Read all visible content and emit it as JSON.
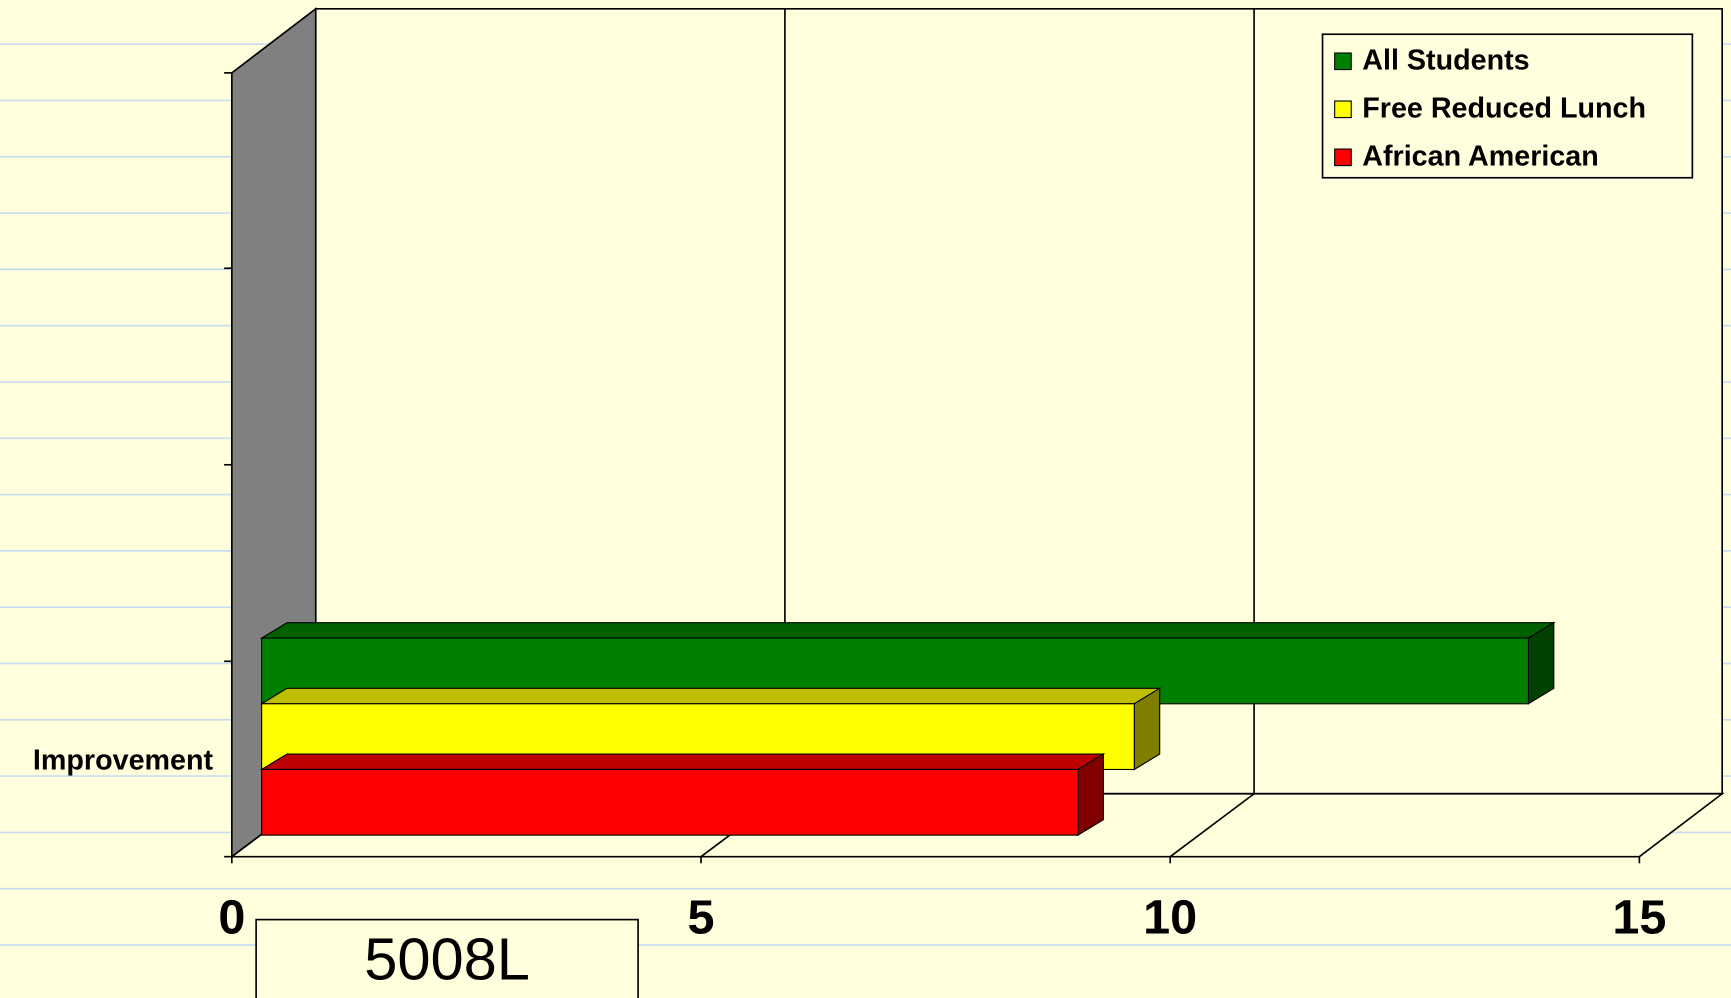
{
  "chart_data": {
    "type": "bar",
    "orientation": "horizontal",
    "categories": [
      "Improvement"
    ],
    "series": [
      {
        "name": "All Students",
        "color": "#008000",
        "values": [
          13.5
        ]
      },
      {
        "name": "Free Reduced Lunch",
        "color": "#ffff00",
        "values": [
          9.3
        ]
      },
      {
        "name": "African American",
        "color": "#ff0000",
        "values": [
          8.7
        ]
      }
    ],
    "xlim": [
      0,
      15
    ],
    "xticks": [
      0,
      5,
      10,
      15
    ],
    "grid": true,
    "legend": "upper right",
    "annotation": "5008L"
  }
}
